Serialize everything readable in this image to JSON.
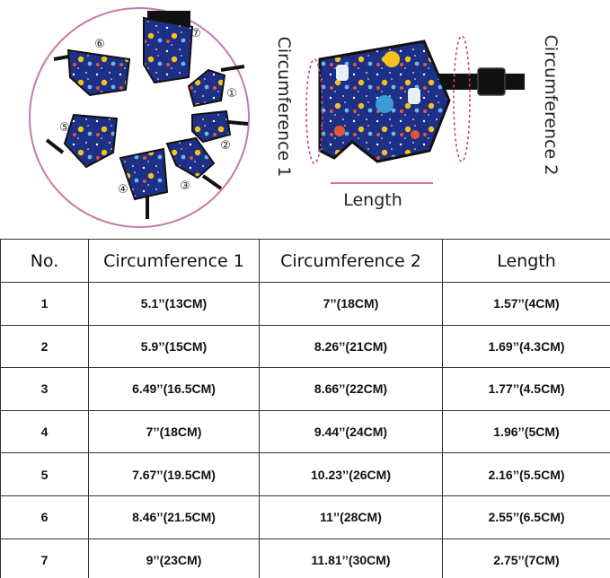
{
  "figure": {
    "circumference_1_label": "Circumference 1",
    "circumference_2_label": "Circumference 2",
    "length_label": "Length",
    "size_markers": [
      "①",
      "②",
      "③",
      "④",
      "⑤",
      "⑥",
      "⑦"
    ],
    "colors": {
      "ring": "#c77aa8",
      "fabric": "#1e2f86",
      "strap": "#111111",
      "measure_line": "#c2438a"
    }
  },
  "table": {
    "headers": [
      "No.",
      "Circumference 1",
      "Circumference 2",
      "Length"
    ],
    "rows": [
      [
        "1",
        "5.1’’(13CM)",
        "7’’(18CM)",
        "1.57’’(4CM)"
      ],
      [
        "2",
        "5.9’’(15CM)",
        "8.26’’(21CM)",
        "1.69’’(4.3CM)"
      ],
      [
        "3",
        "6.49’’(16.5CM)",
        "8.66’’(22CM)",
        "1.77’’(4.5CM)"
      ],
      [
        "4",
        "7’’(18CM)",
        "9.44’’(24CM)",
        "1.96’’(5CM)"
      ],
      [
        "5",
        "7.67’’(19.5CM)",
        "10.23’’(26CM)",
        "2.16’’(5.5CM)"
      ],
      [
        "6",
        "8.46’’(21.5CM)",
        "11’’(28CM)",
        "2.55’’(6.5CM)"
      ],
      [
        "7",
        "9’’(23CM)",
        "11.81’’(30CM)",
        "2.75’’(7CM)"
      ]
    ]
  }
}
